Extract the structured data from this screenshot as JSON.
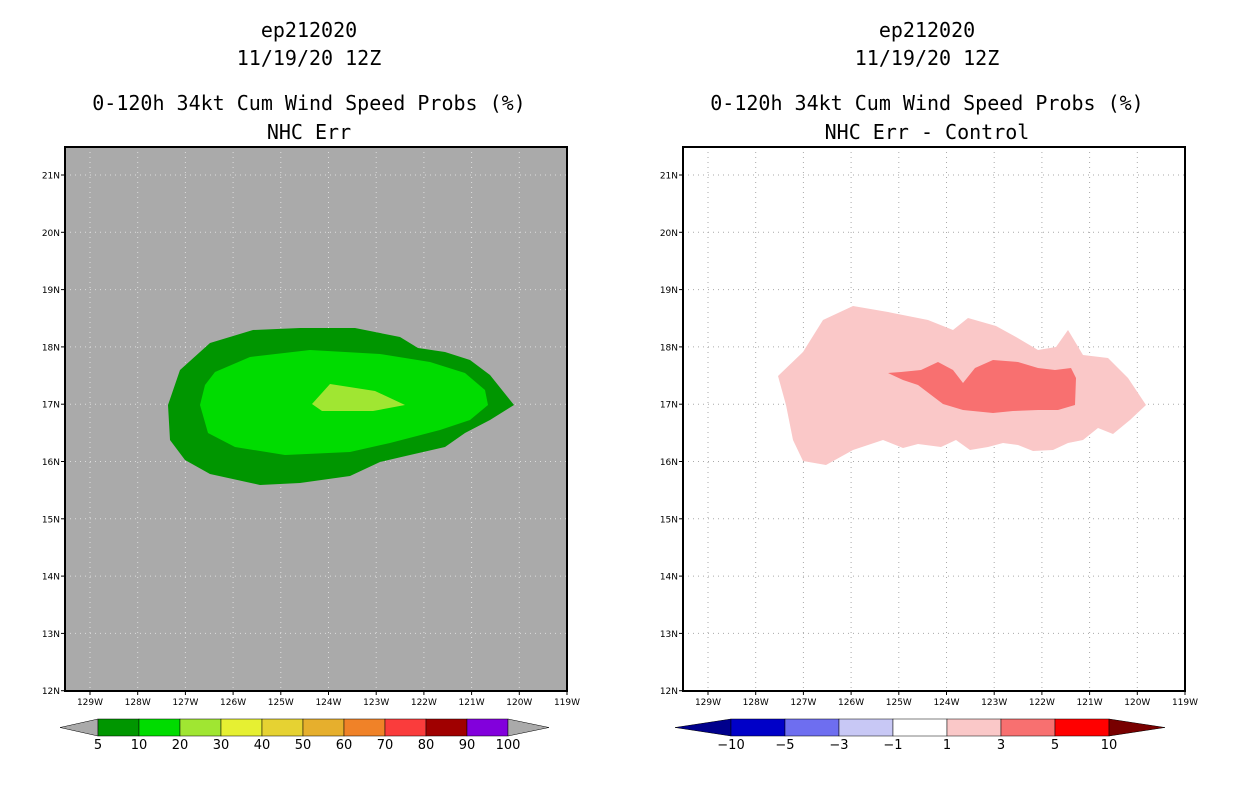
{
  "left_panel": {
    "storm_id": "ep212020",
    "datetime": "11/19/20 12Z",
    "product": "0-120h 34kt Cum Wind Speed Probs (%)",
    "subtitle": "NHC Err",
    "background_color": "#aaaaaa",
    "lat_labels": [
      "21N",
      "20N",
      "19N",
      "18N",
      "17N",
      "16N",
      "15N",
      "14N",
      "13N",
      "12N"
    ],
    "lon_labels": [
      "129W",
      "128W",
      "127W",
      "126W",
      "125W",
      "124W",
      "123W",
      "122W",
      "121W",
      "120W",
      "119W"
    ],
    "colorbar": {
      "labels": [
        "5",
        "10",
        "20",
        "30",
        "40",
        "50",
        "60",
        "70",
        "80",
        "90",
        "100"
      ],
      "colors": [
        "#009600",
        "#00dc00",
        "#a0e632",
        "#e6f032",
        "#e6d232",
        "#e6af2d",
        "#f08228",
        "#fa3c3c",
        "#a00000",
        "#8200dc"
      ]
    },
    "contour_colors": [
      "#009600",
      "#00dc00",
      "#a0e632"
    ]
  },
  "right_panel": {
    "storm_id": "ep212020",
    "datetime": "11/19/20 12Z",
    "product": "0-120h 34kt Cum Wind Speed Probs (%)",
    "subtitle": "NHC Err - Control",
    "background_color": "#ffffff",
    "lat_labels": [
      "21N",
      "20N",
      "19N",
      "18N",
      "17N",
      "16N",
      "15N",
      "14N",
      "13N",
      "12N"
    ],
    "lon_labels": [
      "129W",
      "128W",
      "127W",
      "126W",
      "125W",
      "124W",
      "123W",
      "122W",
      "121W",
      "120W",
      "119W"
    ],
    "colorbar": {
      "labels": [
        "-10",
        "-5",
        "-3",
        "-1",
        "1",
        "3",
        "5",
        "10"
      ],
      "colors": [
        "#0000c8",
        "#6e6ef0",
        "#c8c8f5",
        "#ffffff",
        "#fac8c8",
        "#f87070",
        "#ff0000"
      ],
      "low_end_color": "#00008c",
      "high_end_color": "#780000"
    },
    "contour_colors": [
      "#fac8c8",
      "#f87070"
    ]
  }
}
